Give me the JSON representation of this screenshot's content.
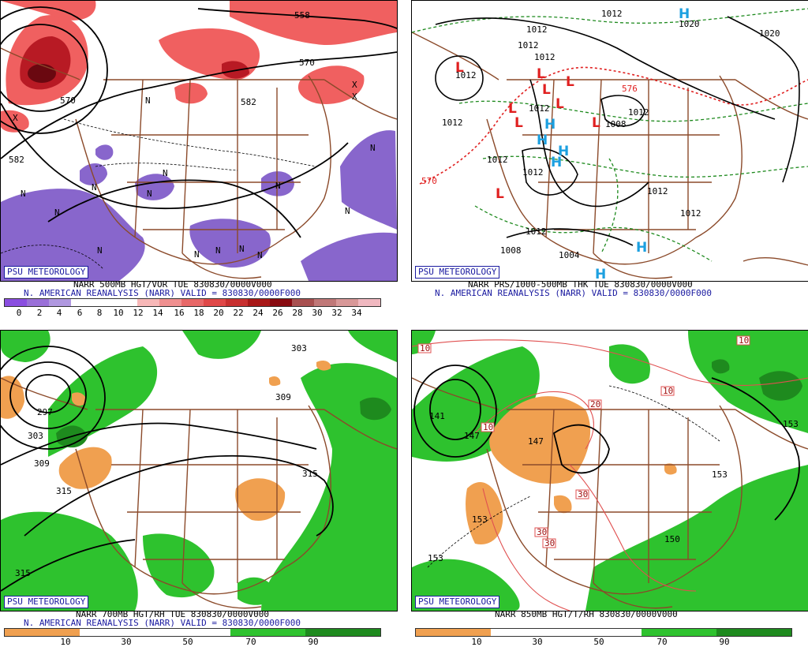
{
  "colors": {
    "vort_purple": "#8866cc",
    "vort_red": "#e05050",
    "vort_darkred": "#8a0a14",
    "rh_green": "#2ec22e",
    "rh_dark_green": "#1e8a1e",
    "rh_orange": "#f0a050",
    "map_lines": "#8b4a2a",
    "high_blue": "#1ca0e0",
    "low_red": "#e02020",
    "thk_green": "#1e8a1e",
    "thk_red": "#e02020",
    "label_blue": "#1a1aa0"
  },
  "panels": [
    {
      "id": "p500",
      "badge": "PSU METEOROLOGY",
      "title_line1": "NARR 500MB HGT/VOR TUE 830830/0000V000",
      "title_line2": "N. AMERICAN REANALYSIS (NARR) VALID = 830830/0000F000",
      "colorbar_ticks": [
        "0",
        "2",
        "4",
        "6",
        "8",
        "10",
        "12",
        "14",
        "16",
        "18",
        "20",
        "22",
        "24",
        "26",
        "28",
        "30",
        "32",
        "34"
      ],
      "contour_labels": [
        "558",
        "570",
        "570",
        "582",
        "582"
      ],
      "n_labels": [
        "N",
        "N",
        "N",
        "N",
        "N",
        "N",
        "N",
        "N",
        "N",
        "N",
        "N",
        "N",
        "N",
        "N"
      ],
      "x_labels": [
        "X",
        "X",
        "X"
      ]
    },
    {
      "id": "pthk",
      "badge": "PSU METEOROLOGY",
      "title_line1": "NARR PRS/1000-500MB THK TUE 830830/0000V000",
      "title_line2": "N. AMERICAN REANALYSIS (NARR) VALID = 830830/0000F000",
      "contour_labels": [
        "1012",
        "1012",
        "1012",
        "1020",
        "1020",
        "1012",
        "1012",
        "1012",
        "1012",
        "1012",
        "1012",
        "1012",
        "1012",
        "1008",
        "1004",
        "1012",
        "1008",
        "570",
        "576",
        "1012"
      ],
      "highs": [
        "H",
        "H",
        "H",
        "H",
        "H",
        "H",
        "H"
      ],
      "lows": [
        "L",
        "L",
        "L",
        "L",
        "L",
        "L",
        "L",
        "L",
        "L"
      ]
    },
    {
      "id": "p700",
      "badge": "PSU METEOROLOGY",
      "title_line1": "NARR 700MB HGT/RH TUE 830830/0000V000",
      "title_line2": "N. AMERICAN REANALYSIS (NARR) VALID = 830830/0000F000",
      "colorbar_ticks": [
        "10",
        "30",
        "50",
        "70",
        "90"
      ],
      "contour_labels": [
        "303",
        "297",
        "303",
        "309",
        "309",
        "315",
        "315",
        "315"
      ]
    },
    {
      "id": "p850",
      "badge": "PSU METEOROLOGY",
      "title_line1": "NARR 850MB HGT/T/RH 830830/0000V000",
      "colorbar_ticks": [
        "10",
        "30",
        "50",
        "70",
        "90"
      ],
      "contour_labels": [
        "141",
        "147",
        "147",
        "153",
        "153",
        "153",
        "153",
        "150"
      ],
      "temp_boxes": [
        "10",
        "10",
        "20",
        "10",
        "30",
        "30",
        "30",
        "10"
      ]
    }
  ]
}
